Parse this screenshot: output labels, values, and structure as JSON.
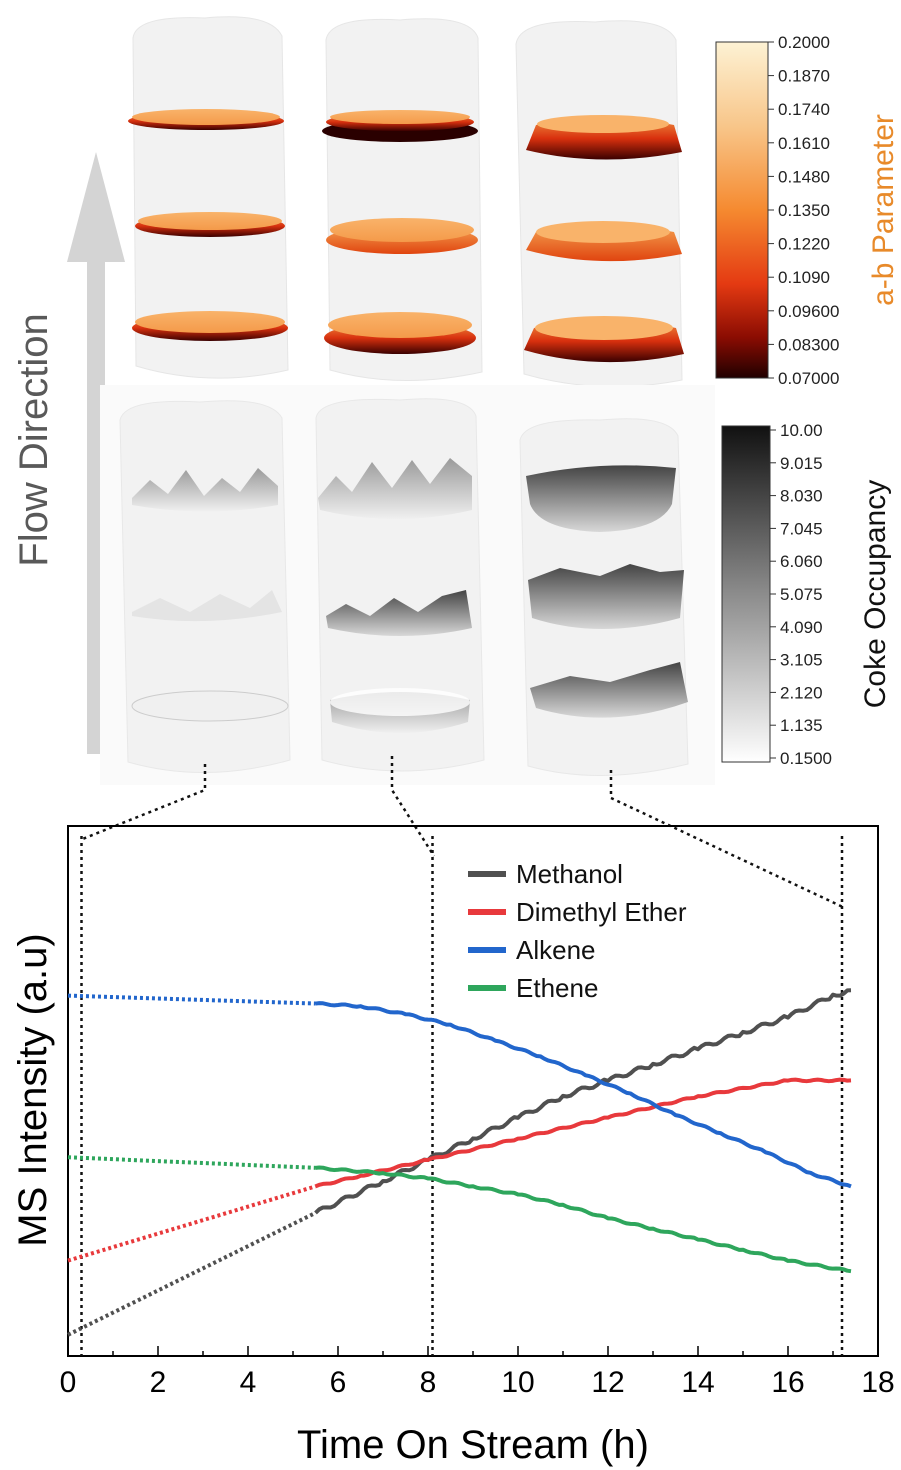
{
  "flow_label": "Flow Direction",
  "colors": {
    "methanol": "#505050",
    "dme": "#e8393c",
    "alkene": "#2266cc",
    "ethene": "#2ea65c",
    "hot_dark": "#2a0000",
    "hot_mid": "#e43a12",
    "hot_light": "#f7a65a",
    "hot_top": "#fdf2d4",
    "cylinder": "#f2f2f2",
    "arrow": "#d4d4d4"
  },
  "colorbar_ab": {
    "title": "a-b Parameter",
    "ticks": [
      "0.2000",
      "0.1870",
      "0.1740",
      "0.1610",
      "0.1480",
      "0.1350",
      "0.1220",
      "0.1090",
      "0.09600",
      "0.08300",
      "0.07000"
    ]
  },
  "colorbar_coke": {
    "title": "Coke Occupancy",
    "ticks": [
      "10.00",
      "9.015",
      "8.030",
      "7.045",
      "6.060",
      "5.075",
      "4.090",
      "3.105",
      "2.120",
      "1.135",
      "0.1500"
    ]
  },
  "chart_data": {
    "type": "line",
    "xlabel": "Time On Stream (h)",
    "ylabel": "MS Intensity (a.u)",
    "xlim": [
      0,
      18
    ],
    "ylim": [
      0,
      1
    ],
    "x_ticks": [
      "0",
      "2",
      "4",
      "6",
      "8",
      "10",
      "12",
      "14",
      "16",
      "18"
    ],
    "markers_x": [
      0.3,
      8.1,
      17.2
    ],
    "legend": "top-right",
    "series": [
      {
        "name": "Methanol",
        "color": "#505050",
        "extrapolated": [
          [
            0,
            0.04
          ],
          [
            5.5,
            0.27
          ]
        ],
        "measured": [
          [
            5.5,
            0.27
          ],
          [
            7,
            0.33
          ],
          [
            8,
            0.37
          ],
          [
            9,
            0.41
          ],
          [
            10,
            0.45
          ],
          [
            11,
            0.49
          ],
          [
            12,
            0.52
          ],
          [
            13,
            0.55
          ],
          [
            14,
            0.58
          ],
          [
            15,
            0.61
          ],
          [
            16,
            0.64
          ],
          [
            17,
            0.68
          ],
          [
            17.4,
            0.69
          ]
        ]
      },
      {
        "name": "Dimethyl Ether",
        "color": "#e8393c",
        "extrapolated": [
          [
            0,
            0.18
          ],
          [
            5.5,
            0.32
          ]
        ],
        "measured": [
          [
            5.5,
            0.32
          ],
          [
            6.5,
            0.34
          ],
          [
            8,
            0.37
          ],
          [
            10,
            0.41
          ],
          [
            12,
            0.45
          ],
          [
            14,
            0.49
          ],
          [
            16,
            0.52
          ],
          [
            17.4,
            0.52
          ]
        ]
      },
      {
        "name": "Alkene",
        "color": "#2266cc",
        "extrapolated": [
          [
            0,
            0.68
          ],
          [
            5.5,
            0.665
          ]
        ],
        "measured": [
          [
            5.5,
            0.665
          ],
          [
            6.5,
            0.66
          ],
          [
            7.5,
            0.645
          ],
          [
            8.5,
            0.625
          ],
          [
            9.5,
            0.595
          ],
          [
            10.5,
            0.565
          ],
          [
            11.5,
            0.53
          ],
          [
            12.5,
            0.495
          ],
          [
            13.5,
            0.455
          ],
          [
            14.5,
            0.42
          ],
          [
            15.5,
            0.385
          ],
          [
            16.5,
            0.345
          ],
          [
            17.4,
            0.32
          ]
        ]
      },
      {
        "name": "Ethene",
        "color": "#2ea65c",
        "extrapolated": [
          [
            0,
            0.375
          ],
          [
            5.5,
            0.355
          ]
        ],
        "measured": [
          [
            5.5,
            0.355
          ],
          [
            7,
            0.345
          ],
          [
            8,
            0.335
          ],
          [
            9,
            0.32
          ],
          [
            10,
            0.305
          ],
          [
            11,
            0.285
          ],
          [
            12,
            0.26
          ],
          [
            13,
            0.24
          ],
          [
            14,
            0.22
          ],
          [
            15,
            0.2
          ],
          [
            16,
            0.18
          ],
          [
            17.4,
            0.16
          ]
        ]
      }
    ]
  }
}
